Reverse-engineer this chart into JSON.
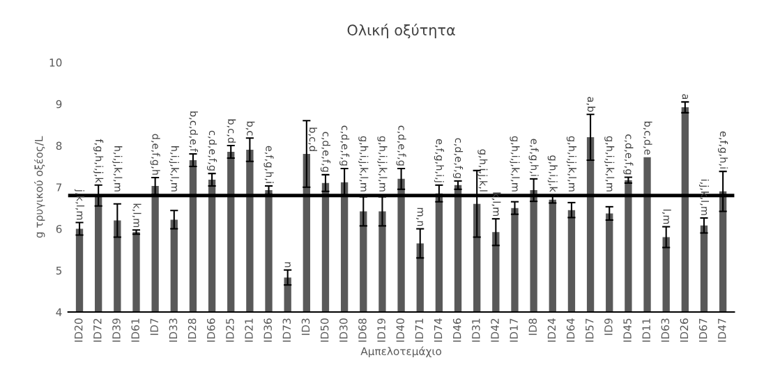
{
  "chart_data": {
    "type": "bar",
    "title": "Ολική οξύτητα",
    "xlabel": "Αμπελοτεμάχιο",
    "ylabel": "g τρυγικού οξέος/L",
    "categories": [
      "ID20",
      "ID72",
      "ID39",
      "ID61",
      "ID7",
      "ID33",
      "ID28",
      "ID66",
      "ID25",
      "ID21",
      "ID36",
      "ID73",
      "ID3",
      "ID50",
      "ID30",
      "ID68",
      "ID19",
      "ID40",
      "ID71",
      "ID74",
      "ID46",
      "ID31",
      "ID42",
      "ID17",
      "ID8",
      "ID24",
      "ID64",
      "ID57",
      "ID9",
      "ID45",
      "ID11",
      "ID63",
      "ID26",
      "ID67",
      "ID47"
    ],
    "values": [
      6.0,
      6.8,
      6.2,
      5.92,
      7.03,
      6.22,
      7.65,
      7.18,
      7.85,
      7.9,
      6.93,
      4.83,
      7.8,
      7.1,
      7.12,
      6.42,
      6.42,
      7.2,
      5.65,
      6.85,
      7.05,
      6.6,
      5.92,
      6.5,
      6.93,
      6.7,
      6.45,
      8.2,
      6.37,
      7.17,
      7.72,
      5.8,
      8.92,
      6.08,
      6.9
    ],
    "errors": [
      0.15,
      0.25,
      0.4,
      0.05,
      0.2,
      0.22,
      0.15,
      0.15,
      0.15,
      0.28,
      0.1,
      0.18,
      0.8,
      0.2,
      0.33,
      0.35,
      0.35,
      0.25,
      0.35,
      0.2,
      0.1,
      0.8,
      0.32,
      0.15,
      0.27,
      0.08,
      0.18,
      0.55,
      0.16,
      0.07,
      null,
      0.25,
      0.13,
      0.18,
      0.48
    ],
    "value_labels": [
      "j,k,l,m",
      "f,g,h,i,j,k",
      "h,i,j,k,l,m",
      "k,l,m",
      "d,e,f,g,h",
      "h,i,j,k,l,m",
      "b,c,d,e,f",
      "c,d,e,f,g",
      "b,c,d",
      "b,c",
      "e,f,g,h,i",
      "n",
      "b,c,d",
      "c,d,e,f,g",
      "c,d,e,f,g",
      "g,h,i,j,k,l,m",
      "g,h,i,j,k,l,m",
      "c,d,e,f,g",
      "m,n",
      "e,f,g,h,i,j",
      "c,d,e,f,g",
      "g,h,i,j,k,l",
      "k,l,m",
      "g,h,i,j,k,l,m",
      "e,f,g,h,i",
      "g,h,i,j,k",
      "g,h,i,j,k,l,m",
      "a,b",
      "g,h,i,j,k,l,m",
      "c,d,e,f,g",
      "b,c,d,e",
      "l,m",
      "a",
      "i,j,k,l,m",
      "e,f,g,h,i"
    ],
    "color": "#595959",
    "ylim": [
      4,
      10
    ],
    "yticks": [
      4,
      5,
      6,
      7,
      8,
      9,
      10
    ],
    "ref_lines": [
      {
        "axis": "y",
        "value": 6.8,
        "color": "#000000"
      }
    ],
    "grid": false
  }
}
